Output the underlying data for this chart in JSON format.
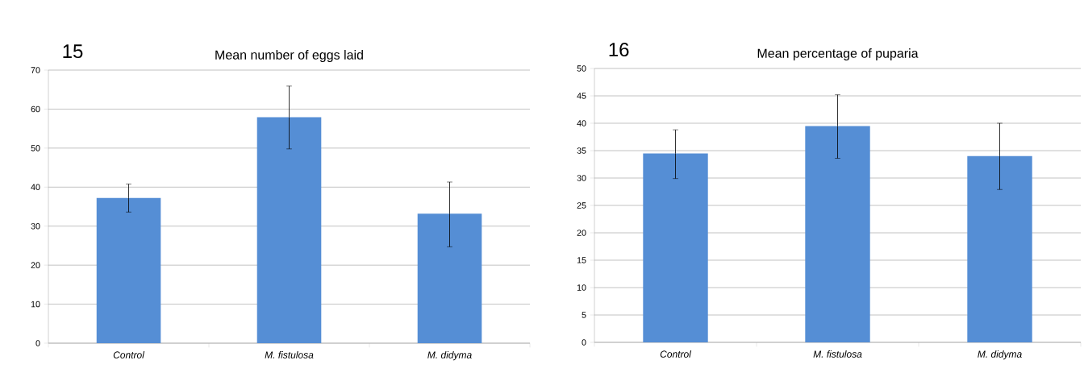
{
  "chart_data": [
    {
      "type": "bar",
      "title": "Mean number of eggs laid",
      "annotations": [
        "15"
      ],
      "categories": [
        "Control",
        "M. fistulosa",
        "M. didyma"
      ],
      "values": [
        37.2,
        57.9,
        33.2
      ],
      "color": "#558ed5",
      "errors": [
        [
          33.6,
          40.8
        ],
        [
          49.8,
          65.9
        ],
        [
          24.7,
          41.3
        ]
      ],
      "ylim": [
        0,
        70
      ],
      "yticks": [
        0,
        10,
        20,
        30,
        40,
        50,
        60,
        70
      ],
      "grid": "y"
    },
    {
      "type": "bar",
      "title": "Mean percentage of puparia",
      "annotations": [
        "16"
      ],
      "categories": [
        "Control",
        "M. fistulosa",
        "M. didyma"
      ],
      "values": [
        34.5,
        39.5,
        34.0
      ],
      "color": "#558ed5",
      "errors": [
        [
          29.9,
          38.8
        ],
        [
          33.6,
          45.2
        ],
        [
          27.9,
          40.0
        ]
      ],
      "ylim": [
        0,
        50
      ],
      "yticks": [
        0,
        5,
        10,
        15,
        20,
        25,
        30,
        35,
        40,
        45,
        50
      ],
      "grid": "y"
    }
  ]
}
